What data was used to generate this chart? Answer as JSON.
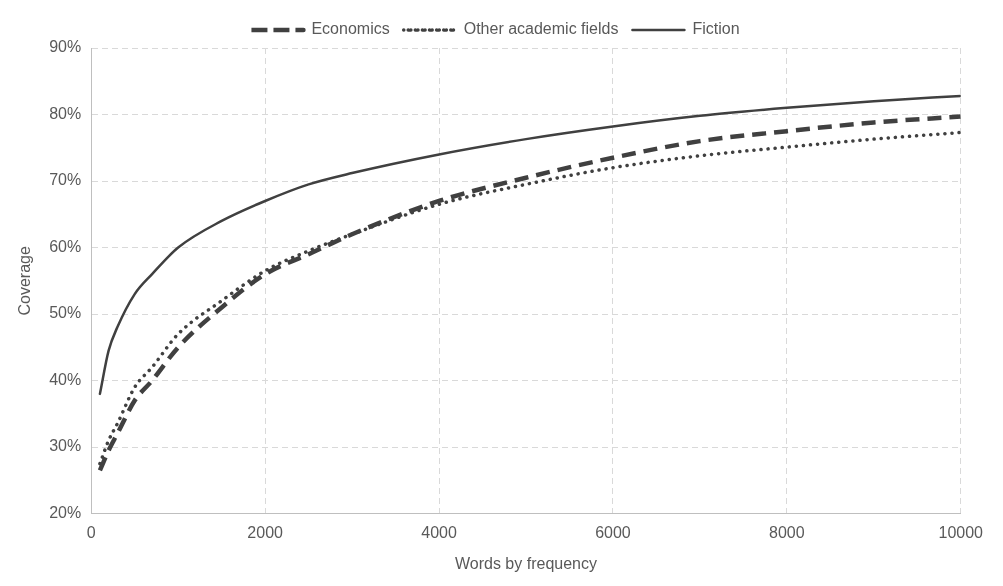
{
  "chart_data": {
    "type": "line",
    "xlabel": "Words by frequency",
    "ylabel": "Coverage",
    "x": [
      100,
      200,
      300,
      500,
      700,
      1000,
      1500,
      2000,
      2500,
      3000,
      4000,
      5000,
      6000,
      7000,
      8000,
      9000,
      10000
    ],
    "series": [
      {
        "name": "Economics",
        "color": "#404040",
        "line_style": "dashed",
        "values": [
          26.5,
          29.5,
          32,
          37,
          40,
          45,
          51,
          56,
          59,
          62,
          67,
          70.5,
          73.5,
          76,
          77.5,
          78.8,
          79.7
        ]
      },
      {
        "name": "Other academic fields",
        "color": "#404040",
        "line_style": "dotted",
        "values": [
          27.5,
          31,
          33.5,
          39,
          42,
          47,
          52,
          56.5,
          59.5,
          62,
          66.5,
          69.5,
          72,
          73.8,
          75.1,
          76.3,
          77.3
        ]
      },
      {
        "name": "Fiction",
        "color": "#404040",
        "line_style": "solid",
        "values": [
          38,
          44.5,
          48,
          53,
          56,
          60,
          64,
          67,
          69.5,
          71.2,
          74,
          76.3,
          78.2,
          79.8,
          81,
          82,
          82.8
        ]
      }
    ],
    "xlim": [
      0,
      10000
    ],
    "xticks": [
      0,
      2000,
      4000,
      6000,
      8000,
      10000
    ],
    "ylim": [
      20,
      90
    ],
    "yticks": [
      {
        "value": 20,
        "label": "20%"
      },
      {
        "value": 30,
        "label": "30%"
      },
      {
        "value": 40,
        "label": "40%"
      },
      {
        "value": 50,
        "label": "50%"
      },
      {
        "value": 60,
        "label": "60%"
      },
      {
        "value": 70,
        "label": "70%"
      },
      {
        "value": 80,
        "label": "80%"
      },
      {
        "value": 90,
        "label": "90%"
      }
    ],
    "grid": true,
    "legend": "top",
    "marker": "none"
  }
}
